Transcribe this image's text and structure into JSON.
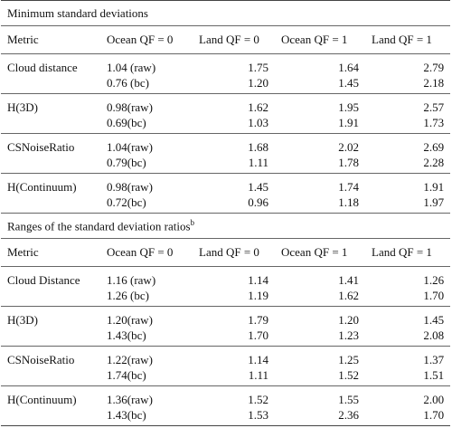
{
  "sections": [
    {
      "title": "Minimum standard deviations",
      "header": [
        "Metric",
        "Ocean QF = 0",
        "Land QF = 0",
        "Ocean QF = 1",
        "Land QF = 1"
      ],
      "groups": [
        {
          "metric": "Cloud distance",
          "rows": [
            [
              "1.04 (raw)",
              "1.75",
              "1.64",
              "2.79"
            ],
            [
              "0.76 (bc)",
              "1.20",
              "1.45",
              "2.18"
            ]
          ]
        },
        {
          "metric": "H(3D)",
          "rows": [
            [
              "0.98(raw)",
              "1.62",
              "1.95",
              "2.57"
            ],
            [
              "0.69(bc)",
              "1.03",
              "1.91",
              "1.73"
            ]
          ]
        },
        {
          "metric": "CSNoiseRatio",
          "rows": [
            [
              "1.04(raw)",
              "1.68",
              "2.02",
              "2.69"
            ],
            [
              "0.79(bc)",
              "1.11",
              "1.78",
              "2.28"
            ]
          ]
        },
        {
          "metric": "H(Continuum)",
          "rows": [
            [
              "0.98(raw)",
              "1.45",
              "1.74",
              "1.91"
            ],
            [
              "0.72(bc)",
              "0.96",
              "1.18",
              "1.97"
            ]
          ]
        }
      ]
    },
    {
      "title": "Ranges of the standard deviation ratios",
      "title_note": "b",
      "header": [
        "Metric",
        "Ocean QF = 0",
        "Land QF = 0",
        "Ocean QF = 1",
        "Land QF = 1"
      ],
      "groups": [
        {
          "metric": "Cloud Distance",
          "rows": [
            [
              "1.16 (raw)",
              "1.14",
              "1.41",
              "1.26"
            ],
            [
              "1.26 (bc)",
              "1.19",
              "1.62",
              "1.70"
            ]
          ]
        },
        {
          "metric": "H(3D)",
          "rows": [
            [
              "1.20(raw)",
              "1.79",
              "1.20",
              "1.45"
            ],
            [
              "1.43(bc)",
              "1.70",
              "1.23",
              "2.08"
            ]
          ]
        },
        {
          "metric": "CSNoiseRatio",
          "rows": [
            [
              "1.22(raw)",
              "1.14",
              "1.25",
              "1.37"
            ],
            [
              "1.74(bc)",
              "1.11",
              "1.52",
              "1.51"
            ]
          ]
        },
        {
          "metric": "H(Continuum)",
          "rows": [
            [
              "1.36(raw)",
              "1.52",
              "1.55",
              "2.00"
            ],
            [
              "1.43(bc)",
              "1.53",
              "2.36",
              "1.70"
            ]
          ]
        }
      ]
    }
  ]
}
